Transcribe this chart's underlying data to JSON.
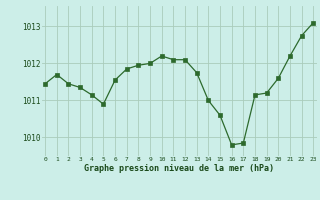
{
  "x": [
    0,
    1,
    2,
    3,
    4,
    5,
    6,
    7,
    8,
    9,
    10,
    11,
    12,
    13,
    14,
    15,
    16,
    17,
    18,
    19,
    20,
    21,
    22,
    23
  ],
  "y": [
    1011.45,
    1011.7,
    1011.45,
    1011.35,
    1011.15,
    1010.9,
    1011.55,
    1011.85,
    1011.95,
    1012.0,
    1012.2,
    1012.1,
    1012.1,
    1011.75,
    1011.0,
    1010.6,
    1009.8,
    1009.85,
    1011.15,
    1011.2,
    1011.6,
    1012.2,
    1012.75,
    1013.1
  ],
  "line_color": "#2d6a2d",
  "marker_color": "#2d6a2d",
  "bg_color": "#cceee8",
  "grid_color": "#aaccbb",
  "xlabel": "Graphe pression niveau de la mer (hPa)",
  "xlabel_color": "#1a4a1a",
  "tick_label_color": "#1a4a1a",
  "ylim": [
    1009.5,
    1013.55
  ],
  "yticks": [
    1010,
    1011,
    1012,
    1013
  ],
  "xticks": [
    0,
    1,
    2,
    3,
    4,
    5,
    6,
    7,
    8,
    9,
    10,
    11,
    12,
    13,
    14,
    15,
    16,
    17,
    18,
    19,
    20,
    21,
    22,
    23
  ]
}
